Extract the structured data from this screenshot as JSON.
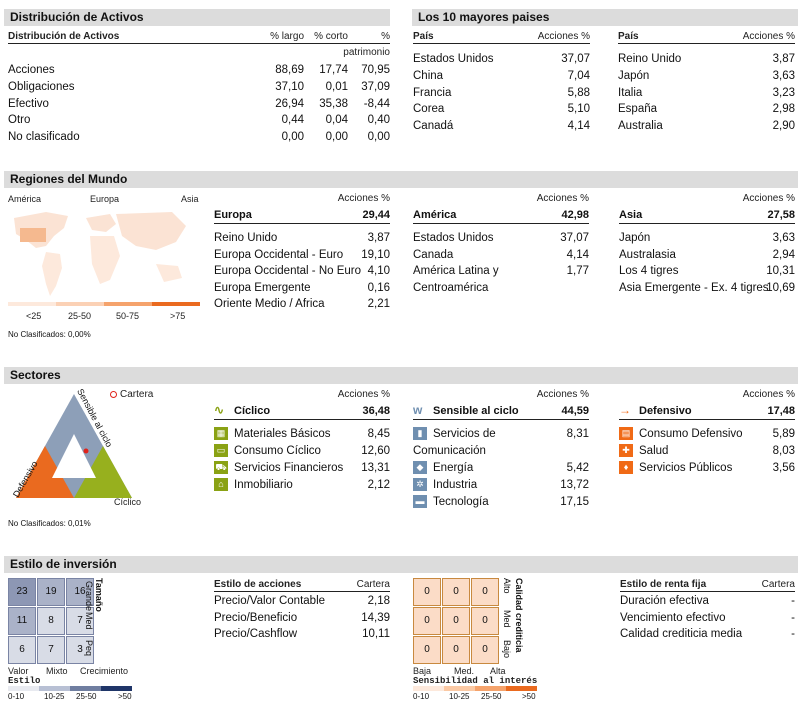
{
  "asset_alloc": {
    "title": "Distribución de Activos",
    "header": "Distribución de Activos",
    "col_long": "% largo",
    "col_short": "% corto",
    "col_pct": "%",
    "col_pct2": "patrimonio",
    "rows": [
      {
        "label": "Acciones",
        "long": "88,69",
        "short": "17,74",
        "net": "70,95"
      },
      {
        "label": "Obligaciones",
        "long": "37,10",
        "short": "0,01",
        "net": "37,09"
      },
      {
        "label": "Efectivo",
        "long": "26,94",
        "short": "35,38",
        "net": "-8,44"
      },
      {
        "label": "Otro",
        "long": "0,44",
        "short": "0,04",
        "net": "0,40"
      },
      {
        "label": "No clasificado",
        "long": "0,00",
        "short": "0,00",
        "net": "0,00"
      }
    ]
  },
  "top_countries": {
    "title": "Los 10 mayores paises",
    "col_country": "País",
    "col_equity": "Acciones %",
    "left": [
      {
        "name": "Estados Unidos",
        "value": "37,07"
      },
      {
        "name": "China",
        "value": "7,04"
      },
      {
        "name": "Francia",
        "value": "5,88"
      },
      {
        "name": "Corea",
        "value": "5,10"
      },
      {
        "name": "Canadá",
        "value": "4,14"
      }
    ],
    "right": [
      {
        "name": "Reino Unido",
        "value": "3,87"
      },
      {
        "name": "Japón",
        "value": "3,63"
      },
      {
        "name": "Italia",
        "value": "3,23"
      },
      {
        "name": "España",
        "value": "2,98"
      },
      {
        "name": "Australia",
        "value": "2,90"
      }
    ]
  },
  "regions": {
    "title": "Regiones del Mundo",
    "map_labels": {
      "america": "América",
      "europe": "Europa",
      "asia": "Asia"
    },
    "legend": [
      "<25",
      "25-50",
      "50-75",
      ">75"
    ],
    "unclassified": "No Clasificados: 0,00%",
    "col_equity": "Acciones %",
    "groups": [
      {
        "name": "Europa",
        "total": "29,44",
        "items": [
          {
            "name": "Reino Unido",
            "value": "3,87"
          },
          {
            "name": "Europa Occidental - Euro",
            "value": "19,10"
          },
          {
            "name": "Europa Occidental - No Euro",
            "value": "4,10"
          },
          {
            "name": "Europa Emergente",
            "value": "0,16"
          },
          {
            "name": "Oriente Medio / Africa",
            "value": "2,21"
          }
        ]
      },
      {
        "name": "América",
        "total": "42,98",
        "items": [
          {
            "name": "Estados Unidos",
            "value": "37,07"
          },
          {
            "name": "Canada",
            "value": "4,14"
          },
          {
            "name": "América Latina y",
            "value": "1,77"
          },
          {
            "name": "Centroamérica",
            "value": ""
          }
        ]
      },
      {
        "name": "Asia",
        "total": "27,58",
        "items": [
          {
            "name": "Japón",
            "value": "3,63"
          },
          {
            "name": "Australasia",
            "value": "2,94"
          },
          {
            "name": "Los 4 tigres",
            "value": "10,31"
          },
          {
            "name": "Asia Emergente - Ex. 4 tigres",
            "value": "10,69"
          }
        ]
      }
    ]
  },
  "sectors": {
    "title": "Sectores",
    "legend_label": "Cartera",
    "tri_labels": {
      "sensitive": "Sensible al ciclo",
      "defensive": "Defensivo",
      "cyclic": "Cíclico"
    },
    "unclassified": "No Clasificados: 0,01%",
    "col_equity": "Acciones %",
    "groups": [
      {
        "name": "Cíclico",
        "total": "36,48",
        "items": [
          {
            "name": "Materiales Básicos",
            "value": "8,45"
          },
          {
            "name": "Consumo Cíclico",
            "value": "12,60"
          },
          {
            "name": "Servicios Financieros",
            "value": "13,31"
          },
          {
            "name": "Inmobiliario",
            "value": "2,12"
          }
        ]
      },
      {
        "name": "Sensible al ciclo",
        "total": "44,59",
        "items": [
          {
            "name": "Servicios de",
            "value": "8,31"
          },
          {
            "name": "Comunicación",
            "value": ""
          },
          {
            "name": "Energía",
            "value": "5,42"
          },
          {
            "name": "Industria",
            "value": "13,72"
          },
          {
            "name": "Tecnología",
            "value": "17,15"
          }
        ]
      },
      {
        "name": "Defensivo",
        "total": "17,48",
        "items": [
          {
            "name": "Consumo Defensivo",
            "value": "5,89"
          },
          {
            "name": "Salud",
            "value": "8,03"
          },
          {
            "name": "Servicios Públicos",
            "value": "3,56"
          }
        ]
      }
    ]
  },
  "style": {
    "title": "Estilo de inversión",
    "equity_grid": [
      "23",
      "19",
      "16",
      "11",
      "8",
      "7",
      "6",
      "7",
      "3"
    ],
    "equity_rows": [
      "Grande",
      "Med",
      "Peq"
    ],
    "equity_row_title": "Tamaño",
    "equity_cols": [
      "Valor",
      "Mixto",
      "Crecimiento"
    ],
    "equity_col_title": "Estilo",
    "equity_scale": [
      "0-10",
      "10-25",
      "25-50",
      ">50"
    ],
    "equity_table": {
      "title": "Estilo de acciones",
      "col": "Cartera",
      "rows": [
        {
          "name": "Precio/Valor Contable",
          "value": "2,18"
        },
        {
          "name": "Precio/Beneficio",
          "value": "14,39"
        },
        {
          "name": "Precio/Cashflow",
          "value": "10,11"
        }
      ]
    },
    "bond_grid": [
      "0",
      "0",
      "0",
      "0",
      "0",
      "0",
      "0",
      "0",
      "0"
    ],
    "bond_rows": [
      "Alto",
      "Med",
      "Bajo"
    ],
    "bond_row_title": "Calidad crediticia",
    "bond_cols": [
      "Baja",
      "Med.",
      "Alta"
    ],
    "bond_col_title": "Sensibilidad al interés",
    "bond_scale": [
      "0-10",
      "10-25",
      "25-50",
      ">50"
    ],
    "bond_table": {
      "title": "Estilo de renta fija",
      "col": "Cartera",
      "rows": [
        {
          "name": "Duración efectiva",
          "value": "-"
        },
        {
          "name": "Vencimiento efectivo",
          "value": "-"
        },
        {
          "name": "Calidad crediticia media",
          "value": "-"
        }
      ]
    }
  },
  "colors": {
    "bar_gray": "#dcdcdc",
    "green": "#8aa214",
    "blue": "#6f8fb0",
    "orange": "#f06a16"
  }
}
